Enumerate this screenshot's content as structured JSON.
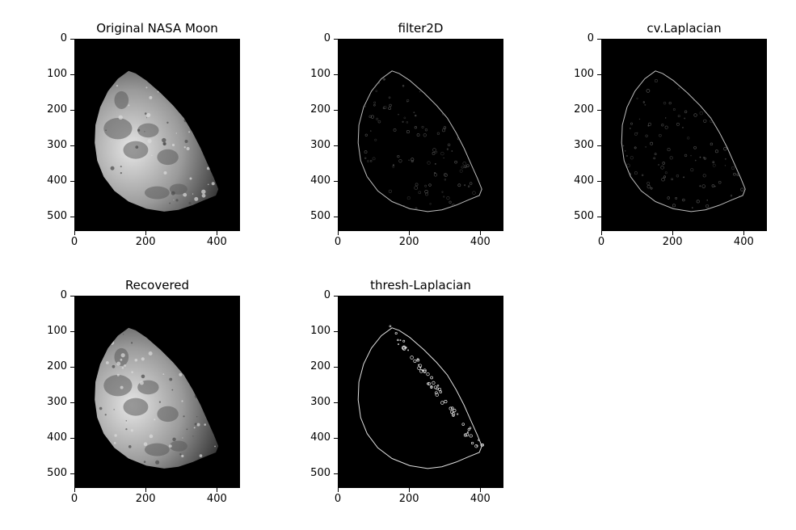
{
  "figure": {
    "panels": [
      {
        "id": "original",
        "title": "Original NASA Moon",
        "style": "moon",
        "yticks": [
          "0",
          "100",
          "200",
          "300",
          "400",
          "500"
        ],
        "xticks": [
          "0",
          "200",
          "400"
        ]
      },
      {
        "id": "filter2d",
        "title": "filter2D",
        "style": "edges",
        "yticks": [
          "0",
          "100",
          "200",
          "300",
          "400",
          "500"
        ],
        "xticks": [
          "0",
          "200",
          "400"
        ]
      },
      {
        "id": "laplacian",
        "title": "cv.Laplacian",
        "style": "edges",
        "yticks": [
          "0",
          "100",
          "200",
          "300",
          "400",
          "500"
        ],
        "xticks": [
          "0",
          "200",
          "400"
        ]
      },
      {
        "id": "recovered",
        "title": "Recovered",
        "style": "moon",
        "yticks": [
          "0",
          "100",
          "200",
          "300",
          "400",
          "500"
        ],
        "xticks": [
          "0",
          "200",
          "400"
        ]
      },
      {
        "id": "thresh",
        "title": "thresh-Laplacian",
        "style": "outline",
        "yticks": [
          "0",
          "100",
          "200",
          "300",
          "400",
          "500"
        ],
        "xticks": [
          "0",
          "200",
          "400"
        ]
      }
    ]
  }
}
